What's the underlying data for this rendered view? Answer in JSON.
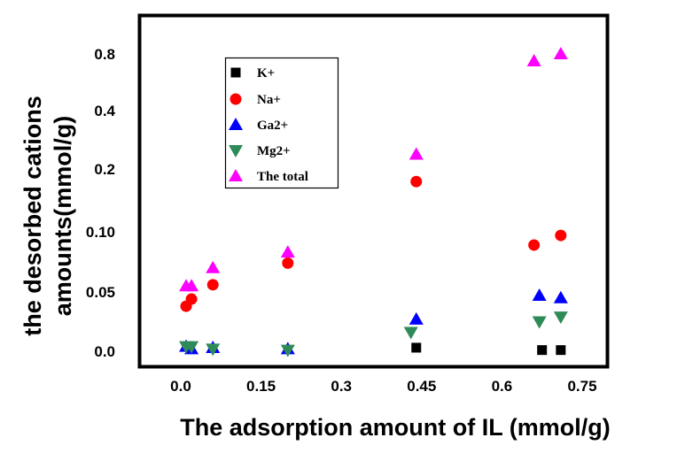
{
  "chart_data": {
    "type": "scatter",
    "xlabel": "The adsorption amount of IL (mmol/g)",
    "ylabel_lines": [
      "the desorbed cations",
      "amounts(mmol/g)"
    ],
    "x_ticks": [
      "0.0",
      "0.15",
      "0.3",
      "0.45",
      "0.6",
      "0.75"
    ],
    "x_tick_values": [
      0,
      0.15,
      0.3,
      0.45,
      0.6,
      0.75
    ],
    "xlim": [
      -0.1,
      0.82
    ],
    "y_scale": "piecewise (non-uniform tick spacing)",
    "y_ticks": [
      "0.0",
      "0.05",
      "0.10",
      "0.2",
      "0.4",
      "0.8"
    ],
    "y_tick_values": [
      0,
      0.05,
      0.1,
      0.2,
      0.4,
      0.8
    ],
    "grid": false,
    "legend_position": "top-left",
    "series": [
      {
        "name": "K+",
        "marker": "square",
        "color": "#000000",
        "x": [
          0.44,
          0.675,
          0.71
        ],
        "y": [
          0.003,
          0.001,
          0.001
        ]
      },
      {
        "name": "Na+",
        "marker": "circle",
        "color": "#ff0000",
        "x": [
          0.01,
          0.02,
          0.06,
          0.2,
          0.44,
          0.66,
          0.71
        ],
        "y": [
          0.038,
          0.044,
          0.056,
          0.074,
          0.18,
          0.089,
          0.097
        ]
      },
      {
        "name": "Ga2+",
        "marker": "triangle-up",
        "color": "#0000ff",
        "x": [
          0.01,
          0.02,
          0.06,
          0.2,
          0.44,
          0.67,
          0.71
        ],
        "y": [
          0.004,
          0.002,
          0.003,
          0.002,
          0.027,
          0.047,
          0.045
        ]
      },
      {
        "name": "Mg2+",
        "marker": "triangle-down",
        "color": "#2e8b57",
        "x": [
          0.01,
          0.02,
          0.06,
          0.2,
          0.43,
          0.67,
          0.71
        ],
        "y": [
          0.004,
          0.004,
          0.002,
          0.001,
          0.016,
          0.025,
          0.029
        ]
      },
      {
        "name": "The total",
        "marker": "triangle-up",
        "color": "#ff00ff",
        "x": [
          0.01,
          0.02,
          0.06,
          0.2,
          0.44,
          0.66,
          0.71
        ],
        "y": [
          0.055,
          0.055,
          0.07,
          0.083,
          0.25,
          0.75,
          0.8
        ]
      }
    ]
  }
}
